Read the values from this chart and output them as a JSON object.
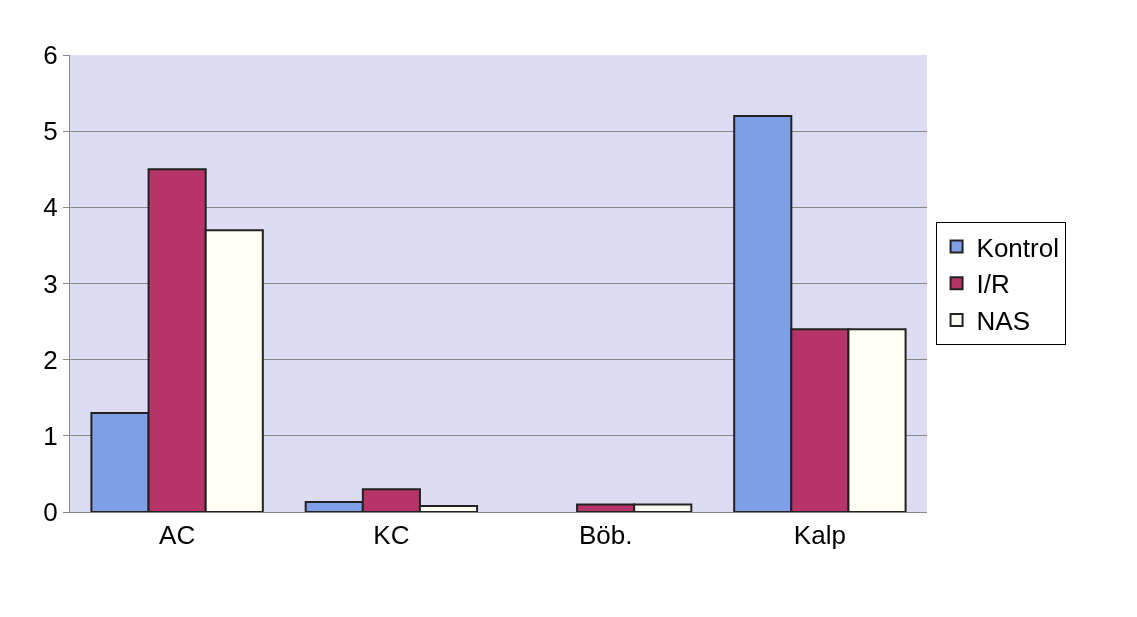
{
  "chart_data": {
    "type": "bar",
    "categories": [
      "AC",
      "KC",
      "Böb.",
      "Kalp"
    ],
    "series": [
      {
        "name": "Kontrol",
        "color": "#7f9fe6",
        "values": [
          1.3,
          0.13,
          null,
          5.2
        ]
      },
      {
        "name": "I/R",
        "color": "#b83468",
        "values": [
          4.5,
          0.3,
          0.1,
          2.4
        ]
      },
      {
        "name": "NAS",
        "color": "#fffff4",
        "values": [
          3.7,
          0.08,
          0.1,
          2.4
        ]
      }
    ],
    "ylim": [
      0,
      6
    ],
    "yticks": [
      0,
      1,
      2,
      3,
      4,
      5,
      6
    ],
    "grid": "y",
    "legend": "right"
  }
}
